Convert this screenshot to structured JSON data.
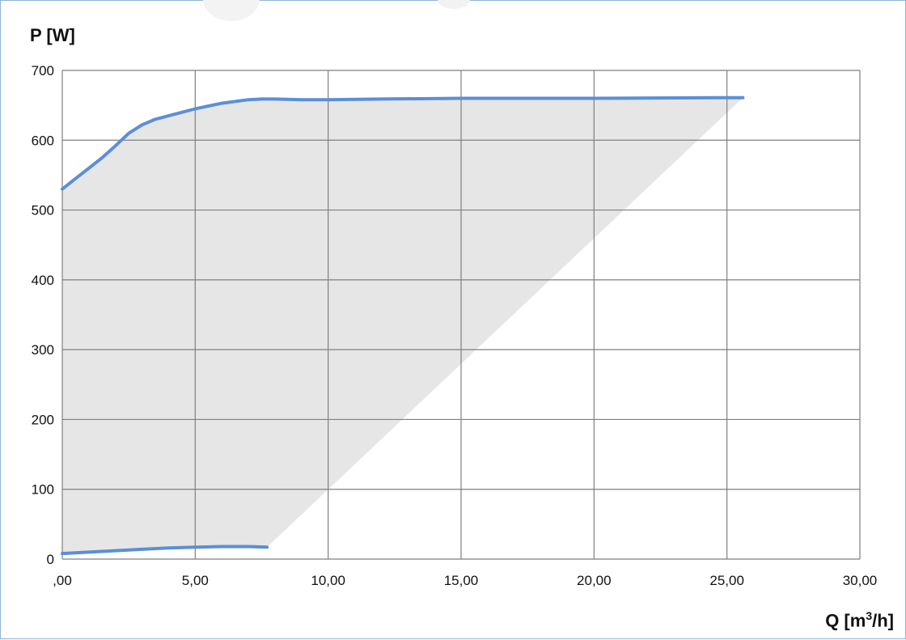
{
  "chart_data": {
    "type": "line",
    "title": "",
    "ylabel": "P [W]",
    "xlabel_main": "Q [m",
    "xlabel_sup": "3",
    "xlabel_tail": "/h]",
    "xlim": [
      0,
      30
    ],
    "ylim": [
      0,
      700
    ],
    "x_ticks": [
      0,
      5,
      10,
      15,
      20,
      25,
      30
    ],
    "x_tick_labels": [
      ",00",
      "5,00",
      "10,00",
      "15,00",
      "20,00",
      "25,00",
      "30,00"
    ],
    "y_ticks": [
      0,
      100,
      200,
      300,
      400,
      500,
      600,
      700
    ],
    "y_tick_labels": [
      "0",
      "100",
      "200",
      "300",
      "400",
      "500",
      "600",
      "700"
    ],
    "grid": true,
    "colors": {
      "line": "#5b8fd6",
      "fill": "#e6e6e6",
      "grid": "#7f7f7f"
    },
    "series": [
      {
        "x": [
          0,
          0.5,
          1,
          1.5,
          2,
          2.5,
          3,
          3.5,
          4,
          5,
          6,
          7,
          7.5,
          8,
          9,
          10,
          12,
          15,
          20,
          25,
          25.6
        ],
        "values": [
          530,
          545,
          560,
          575,
          592,
          610,
          622,
          630,
          635,
          645,
          653,
          658,
          659,
          659,
          658,
          658,
          659,
          660,
          660,
          661,
          661
        ]
      },
      {
        "x": [
          0,
          1,
          2,
          3,
          4,
          5,
          6,
          7,
          7.7
        ],
        "values": [
          8,
          10,
          12,
          14,
          16,
          17,
          18,
          18,
          17
        ]
      }
    ],
    "shaded_region": {
      "x": [
        0,
        0.5,
        1,
        1.5,
        2,
        2.5,
        3,
        3.5,
        4,
        5,
        6,
        7,
        7.5,
        8,
        9,
        10,
        12,
        15,
        20,
        25,
        25.6,
        7.7,
        7,
        6,
        5,
        4,
        3,
        2,
        1,
        0
      ],
      "y": [
        530,
        545,
        560,
        575,
        592,
        610,
        622,
        630,
        635,
        645,
        653,
        658,
        659,
        659,
        658,
        658,
        659,
        660,
        660,
        661,
        661,
        17,
        18,
        18,
        17,
        16,
        14,
        12,
        10,
        8
      ]
    }
  }
}
